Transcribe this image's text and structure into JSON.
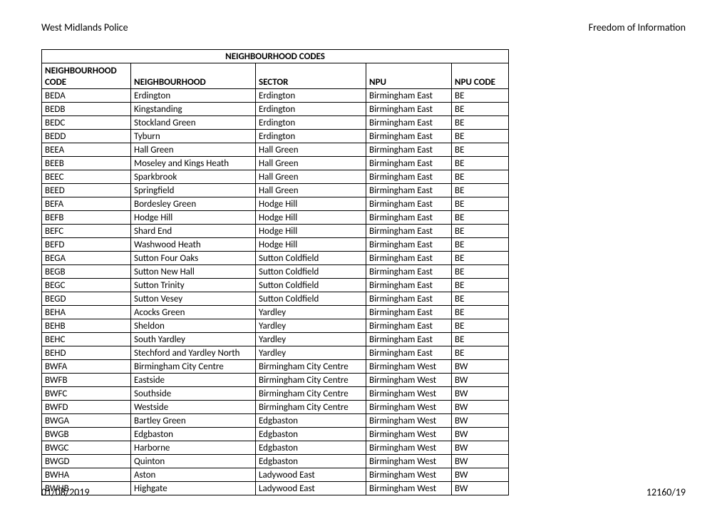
{
  "header": {
    "left": "West Midlands Police",
    "right": "Freedom of Information"
  },
  "footer": {
    "left": "01/08/2019",
    "right": "12160/19"
  },
  "table": {
    "title": "NEIGHBOURHOOD CODES",
    "columns": [
      "NEIGHBOURHOOD CODE",
      "NEIGHBOURHOOD",
      "SECTOR",
      "NPU",
      "NPU CODE"
    ],
    "rows": [
      [
        "BEDA",
        "Erdington",
        "Erdington",
        "Birmingham East",
        "BE"
      ],
      [
        "BEDB",
        "Kingstanding",
        "Erdington",
        "Birmingham East",
        "BE"
      ],
      [
        "BEDC",
        "Stockland Green",
        "Erdington",
        "Birmingham East",
        "BE"
      ],
      [
        "BEDD",
        "Tyburn",
        "Erdington",
        "Birmingham East",
        "BE"
      ],
      [
        "BEEA",
        "Hall Green",
        "Hall Green",
        "Birmingham East",
        "BE"
      ],
      [
        "BEEB",
        "Moseley and Kings Heath",
        "Hall Green",
        "Birmingham East",
        "BE"
      ],
      [
        "BEEC",
        "Sparkbrook",
        "Hall Green",
        "Birmingham East",
        "BE"
      ],
      [
        "BEED",
        "Springfield",
        "Hall Green",
        "Birmingham East",
        "BE"
      ],
      [
        "BEFA",
        "Bordesley Green",
        "Hodge Hill",
        "Birmingham East",
        "BE"
      ],
      [
        "BEFB",
        "Hodge Hill",
        "Hodge Hill",
        "Birmingham East",
        "BE"
      ],
      [
        "BEFC",
        "Shard End",
        "Hodge Hill",
        "Birmingham East",
        "BE"
      ],
      [
        "BEFD",
        "Washwood Heath",
        "Hodge Hill",
        "Birmingham East",
        "BE"
      ],
      [
        "BEGA",
        "Sutton Four Oaks",
        "Sutton Coldfield",
        "Birmingham East",
        "BE"
      ],
      [
        "BEGB",
        "Sutton New Hall",
        "Sutton Coldfield",
        "Birmingham East",
        "BE"
      ],
      [
        "BEGC",
        "Sutton Trinity",
        "Sutton Coldfield",
        "Birmingham East",
        "BE"
      ],
      [
        "BEGD",
        "Sutton Vesey",
        "Sutton Coldfield",
        "Birmingham East",
        "BE"
      ],
      [
        "BEHA",
        "Acocks Green",
        "Yardley",
        "Birmingham East",
        "BE"
      ],
      [
        "BEHB",
        "Sheldon",
        "Yardley",
        "Birmingham East",
        "BE"
      ],
      [
        "BEHC",
        "South Yardley",
        "Yardley",
        "Birmingham East",
        "BE"
      ],
      [
        "BEHD",
        "Stechford and Yardley North",
        "Yardley",
        "Birmingham East",
        "BE"
      ],
      [
        "BWFA",
        "Birmingham City Centre",
        "Birmingham City Centre",
        "Birmingham West",
        "BW"
      ],
      [
        "BWFB",
        "Eastside",
        "Birmingham City Centre",
        "Birmingham West",
        "BW"
      ],
      [
        "BWFC",
        "Southside",
        "Birmingham City Centre",
        "Birmingham West",
        "BW"
      ],
      [
        "BWFD",
        "Westside",
        "Birmingham City Centre",
        "Birmingham West",
        "BW"
      ],
      [
        "BWGA",
        "Bartley Green",
        "Edgbaston",
        "Birmingham West",
        "BW"
      ],
      [
        "BWGB",
        "Edgbaston",
        "Edgbaston",
        "Birmingham West",
        "BW"
      ],
      [
        "BWGC",
        "Harborne",
        "Edgbaston",
        "Birmingham West",
        "BW"
      ],
      [
        "BWGD",
        "Quinton",
        "Edgbaston",
        "Birmingham West",
        "BW"
      ],
      [
        "BWHA",
        "Aston",
        "Ladywood East",
        "Birmingham West",
        "BW"
      ],
      [
        "BWHB",
        "Highgate",
        "Ladywood East",
        "Birmingham West",
        "BW"
      ]
    ]
  }
}
